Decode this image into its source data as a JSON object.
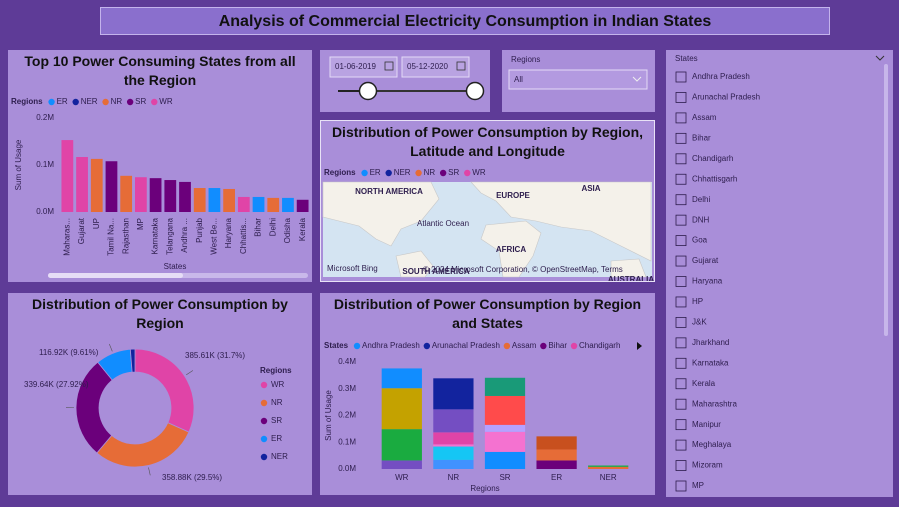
{
  "header": {
    "title": "Analysis of Commercial Electricity Consumption in Indian States"
  },
  "date_slicer": {
    "start": "01-06-2019",
    "end": "05-12-2020"
  },
  "region_slicer": {
    "label": "Regions",
    "value": "All"
  },
  "states_slicer": {
    "label": "States",
    "items": [
      "Andhra Pradesh",
      "Arunachal Pradesh",
      "Assam",
      "Bihar",
      "Chandigarh",
      "Chhattisgarh",
      "Delhi",
      "DNH",
      "Goa",
      "Gujarat",
      "Haryana",
      "HP",
      "J&K",
      "Jharkhand",
      "Karnataka",
      "Kerala",
      "Maharashtra",
      "Manipur",
      "Meghalaya",
      "Mizoram",
      "MP"
    ]
  },
  "map": {
    "title": "Distribution of Power Consumption by Region, Latitude and Longitude",
    "legend_title": "Regions",
    "legend": [
      {
        "name": "ER",
        "color": "#118dff"
      },
      {
        "name": "NER",
        "color": "#12239e"
      },
      {
        "name": "NR",
        "color": "#e66c37"
      },
      {
        "name": "SR",
        "color": "#6b007b"
      },
      {
        "name": "WR",
        "color": "#e044a7"
      }
    ],
    "labels": [
      "NORTH AMERICA",
      "EUROPE",
      "ASIA",
      "Atlantic Ocean",
      "AFRICA",
      "SOUTH AMERICA",
      "AUSTRALIA"
    ],
    "provider": "Microsoft Bing",
    "attribution": "© 2024 Microsoft Corporation, © OpenStreetMap, Terms"
  },
  "chart_data": [
    {
      "type": "bar",
      "title": "Top 10 Power Consuming States from all the Region",
      "legend_title": "Regions",
      "legend": [
        {
          "name": "ER",
          "color": "#118dff"
        },
        {
          "name": "NER",
          "color": "#12239e"
        },
        {
          "name": "NR",
          "color": "#e66c37"
        },
        {
          "name": "SR",
          "color": "#6b007b"
        },
        {
          "name": "WR",
          "color": "#e044a7"
        }
      ],
      "x_label": "States",
      "y_label": "Sum of Usage",
      "categories": [
        "Maharas...",
        "Gujarat",
        "UP",
        "Tamil Na...",
        "Rajasthan",
        "MP",
        "Karnataka",
        "Telangana",
        "Andhra ...",
        "Punjab",
        "West Be...",
        "Haryana",
        "Chhattis...",
        "Bihar",
        "Delhi",
        "Odisha",
        "Kerala"
      ],
      "values": [
        153000,
        117000,
        113000,
        108000,
        77000,
        74000,
        72000,
        68000,
        64000,
        51000,
        51000,
        49000,
        32000,
        32000,
        30000,
        30000,
        26000
      ],
      "colors": [
        "#e044a7",
        "#e044a7",
        "#e66c37",
        "#6b007b",
        "#e66c37",
        "#e044a7",
        "#6b007b",
        "#6b007b",
        "#6b007b",
        "#e66c37",
        "#118dff",
        "#e66c37",
        "#e044a7",
        "#118dff",
        "#e66c37",
        "#118dff",
        "#6b007b"
      ],
      "ylim": [
        0,
        200000
      ],
      "yticks": [
        {
          "value": 0,
          "label": "0.0M"
        },
        {
          "value": 100000,
          "label": "0.1M"
        },
        {
          "value": 200000,
          "label": "0.2M"
        }
      ]
    },
    {
      "type": "donut",
      "title": "Distribution of Power Consumption by Region",
      "legend_title": "Regions",
      "categories": [
        "WR",
        "NR",
        "SR",
        "ER",
        "NER"
      ],
      "values": [
        385610,
        358880,
        339640,
        116920,
        15350
      ],
      "value_labels": [
        "385.61K (31.7%)",
        "358.88K (29.5%)",
        "339.64K (27.92%)",
        "116.92K (9.61%)",
        null
      ],
      "colors": [
        "#e044a7",
        "#e66c37",
        "#6b007b",
        "#118dff",
        "#12239e"
      ]
    },
    {
      "type": "stacked_bar",
      "title": "Distribution of Power Consumption by Region and States",
      "legend_title": "States",
      "legend": [
        {
          "name": "Andhra Pradesh",
          "color": "#118dff"
        },
        {
          "name": "Arunachal Pradesh",
          "color": "#12239e"
        },
        {
          "name": "Assam",
          "color": "#e66c37"
        },
        {
          "name": "Bihar",
          "color": "#6b007b"
        },
        {
          "name": "Chandigarh",
          "color": "#e044a7"
        }
      ],
      "x_label": "Regions",
      "y_label": "Sum of Usage",
      "categories": [
        "WR",
        "NR",
        "SR",
        "ER",
        "NER"
      ],
      "stacks": [
        [
          {
            "value": 32000,
            "color": "#744ec2"
          },
          {
            "value": 117000,
            "color": "#1aab40"
          },
          {
            "value": 153000,
            "color": "#c4a200"
          },
          {
            "value": 74000,
            "color": "#118dff"
          }
        ],
        [
          {
            "value": 34000,
            "color": "#4092ff"
          },
          {
            "value": 50000,
            "color": "#15c6f4"
          },
          {
            "value": 8000,
            "color": "#f472d0"
          },
          {
            "value": 45000,
            "color": "#e044a7"
          },
          {
            "value": 86000,
            "color": "#744ec2"
          },
          {
            "value": 116000,
            "color": "#12239e"
          }
        ],
        [
          {
            "value": 64000,
            "color": "#118dff"
          },
          {
            "value": 75000,
            "color": "#f472d0"
          },
          {
            "value": 26000,
            "color": "#b5a1ff"
          },
          {
            "value": 108000,
            "color": "#ff4b4b"
          },
          {
            "value": 68000,
            "color": "#199a78"
          }
        ],
        [
          {
            "value": 32000,
            "color": "#6b007b"
          },
          {
            "value": 41000,
            "color": "#e66c37"
          },
          {
            "value": 49000,
            "color": "#c8501e"
          }
        ],
        [
          {
            "value": 8000,
            "color": "#e66c37"
          },
          {
            "value": 5000,
            "color": "#1aab40"
          }
        ]
      ],
      "ylim": [
        0,
        400000
      ],
      "yticks": [
        {
          "value": 0,
          "label": "0.0M"
        },
        {
          "value": 100000,
          "label": "0.1M"
        },
        {
          "value": 200000,
          "label": "0.2M"
        },
        {
          "value": 300000,
          "label": "0.3M"
        },
        {
          "value": 400000,
          "label": "0.4M"
        }
      ]
    }
  ]
}
